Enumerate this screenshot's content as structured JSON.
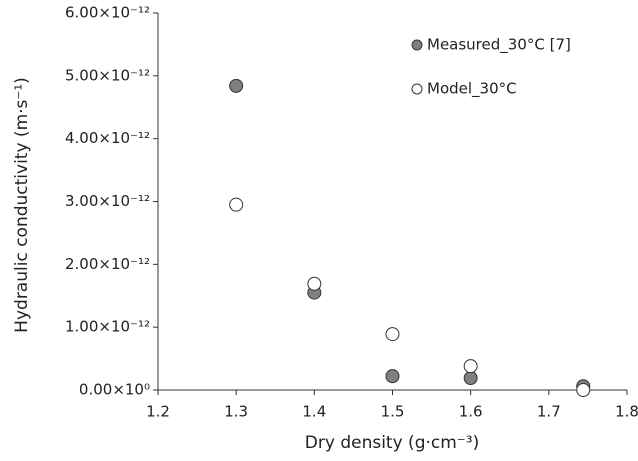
{
  "chart_data": {
    "type": "scatter",
    "x_label": "Dry density (g·cm⁻³)",
    "y_label": "Hydraulic conductivity (m·s⁻¹)",
    "x": [
      1.3,
      1.4,
      1.5,
      1.6,
      1.744
    ],
    "series": [
      {
        "name": "Measured_30°C [7]",
        "color": "#808080",
        "values": [
          4.84e-12,
          1.55e-12,
          2.2e-13,
          1.9e-13,
          6e-14
        ]
      },
      {
        "name": "Model_30°C",
        "color": "#ffffff",
        "values": [
          2.95e-12,
          1.69e-12,
          8.9e-13,
          3.8e-13,
          0.0
        ]
      }
    ],
    "xlim": [
      1.2,
      1.8
    ],
    "xticks": [
      1.2,
      1.3,
      1.4,
      1.5,
      1.6,
      1.7,
      1.8
    ],
    "ylim": [
      0,
      6e-12
    ],
    "yticks": [
      {
        "value": 0,
        "label": "0.00×10⁰"
      },
      {
        "value": 1e-12,
        "label": "1.00×10⁻¹²"
      },
      {
        "value": 2e-12,
        "label": "2.00×10⁻¹²"
      },
      {
        "value": 3e-12,
        "label": "3.00×10⁻¹²"
      },
      {
        "value": 4e-12,
        "label": "4.00×10⁻¹²"
      },
      {
        "value": 5e-12,
        "label": "5.00×10⁻¹²"
      },
      {
        "value": 6e-12,
        "label": "6.00×10⁻¹²"
      }
    ],
    "grid": false,
    "legend": "upper right"
  }
}
